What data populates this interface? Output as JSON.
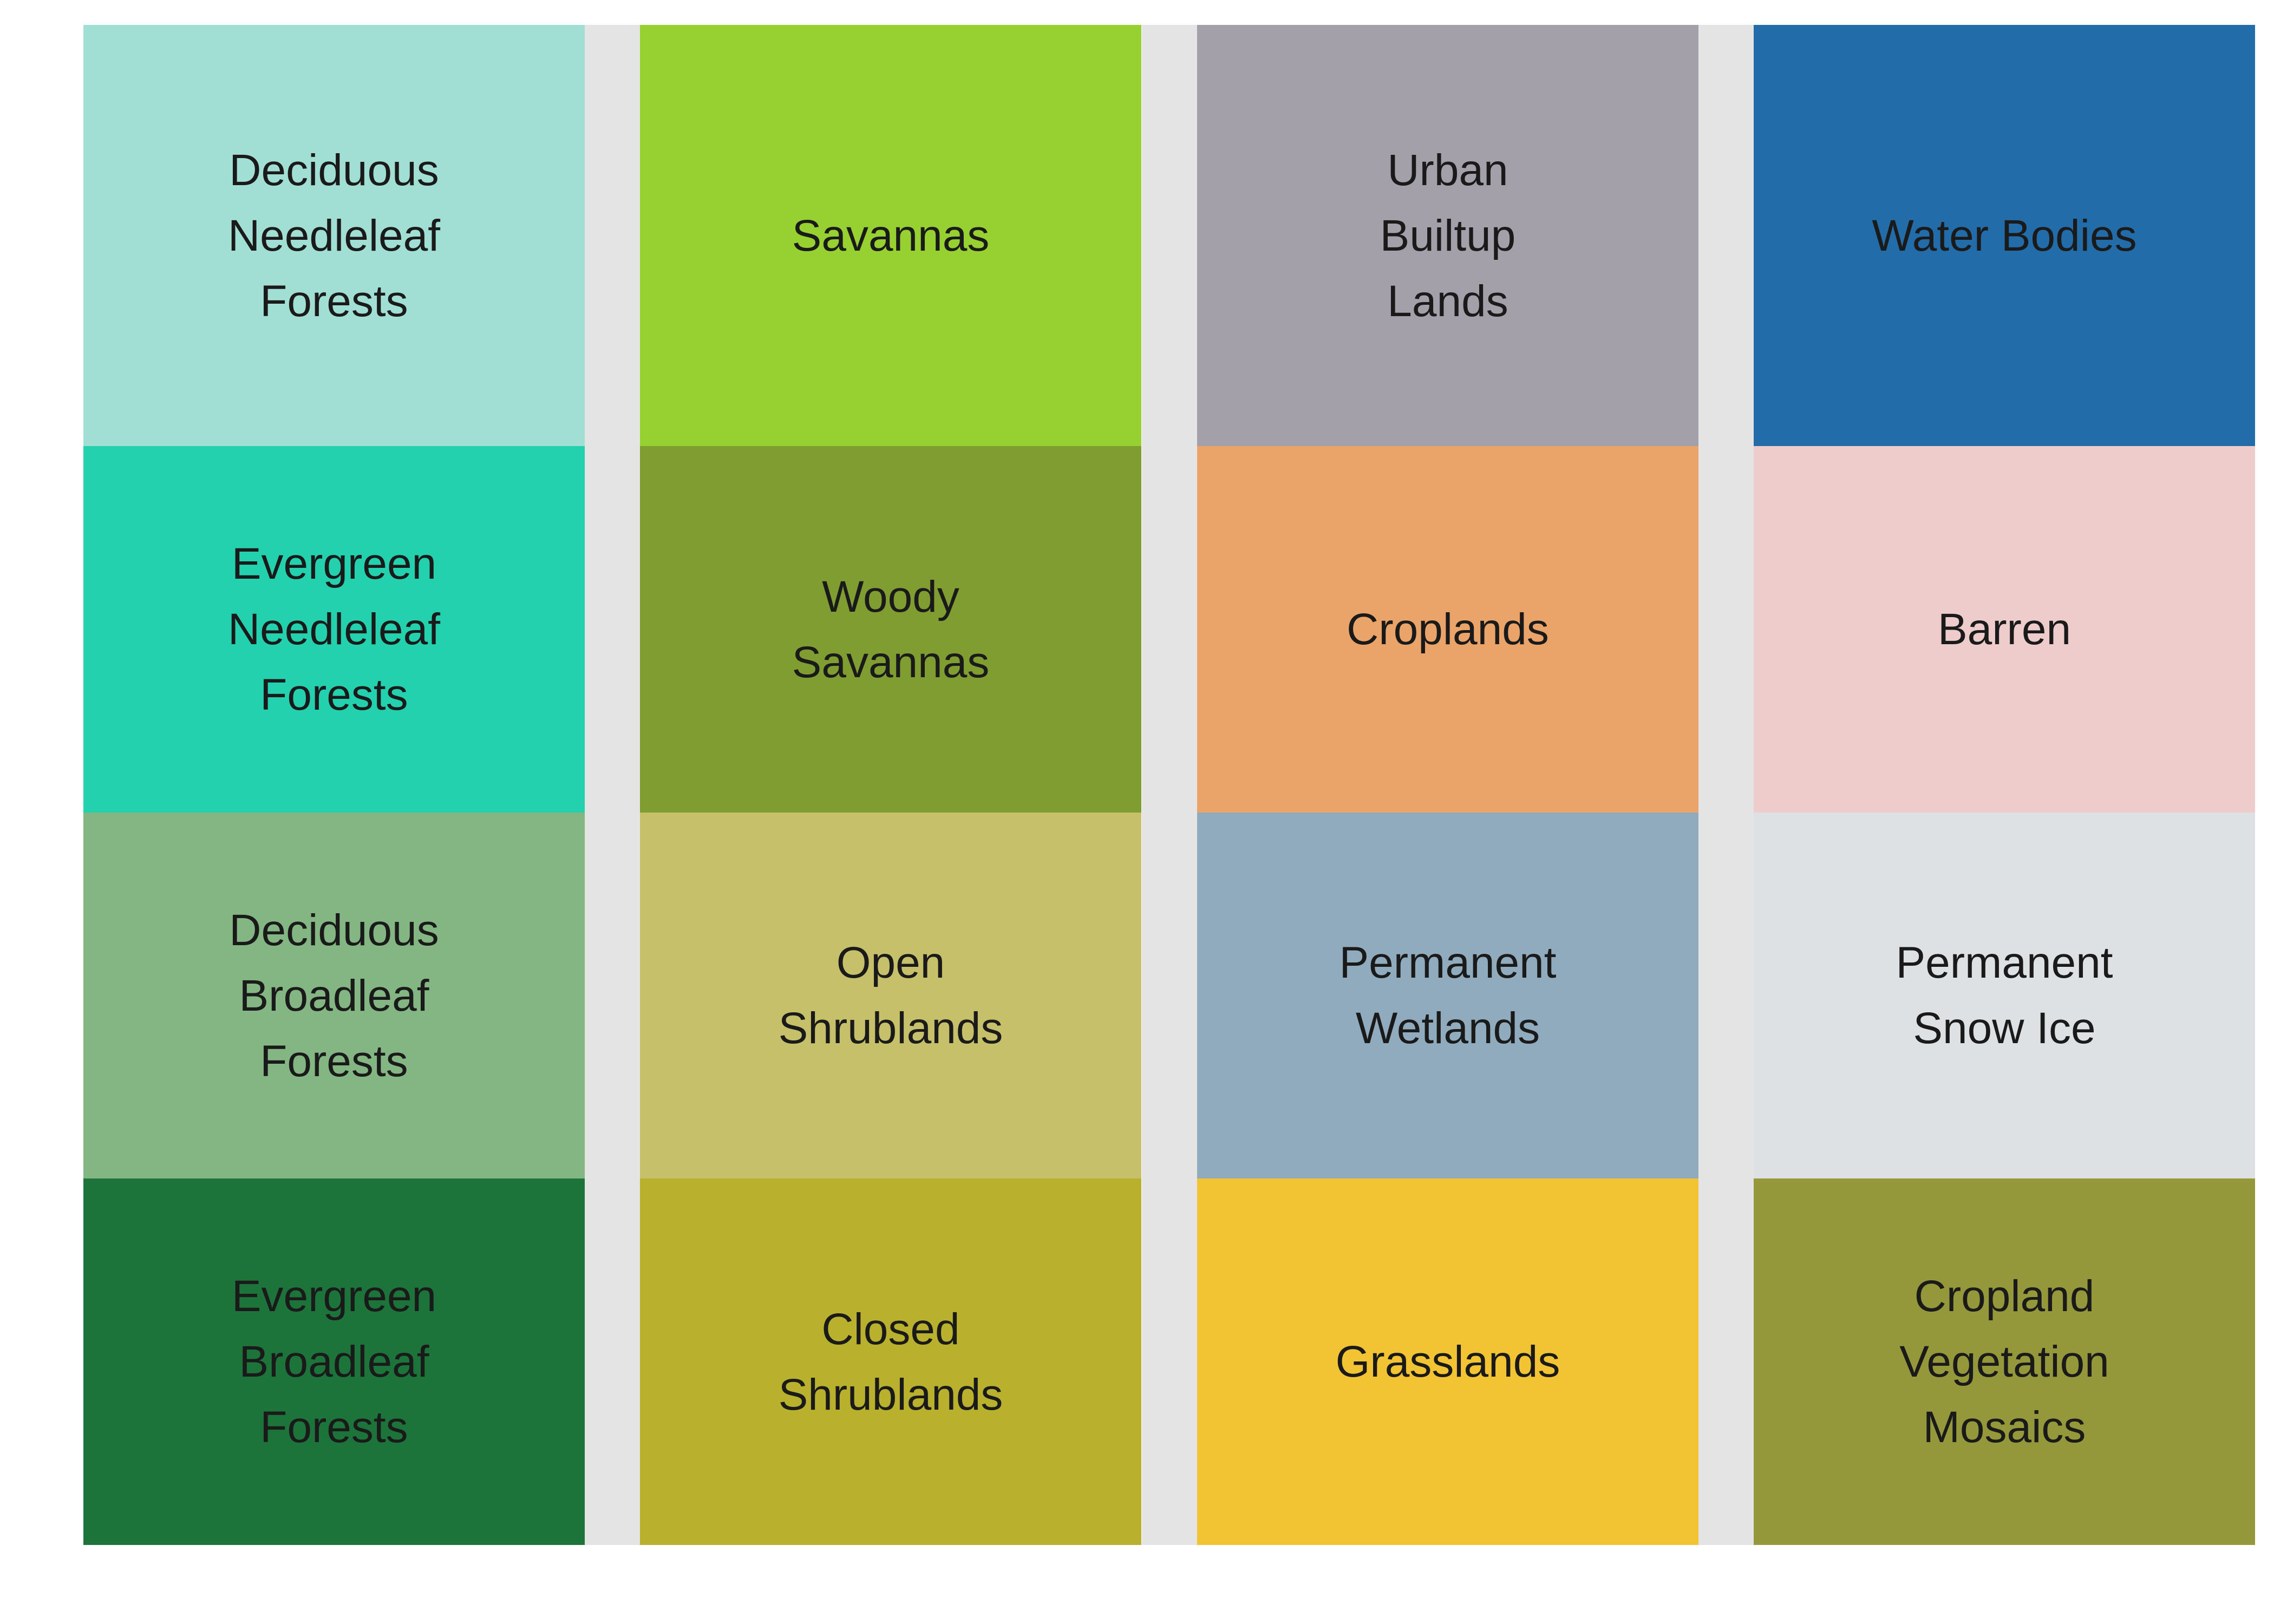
{
  "chart_data": {
    "type": "table",
    "columns": 4,
    "rows": 4,
    "cells": [
      {
        "label": "Deciduous\nNeedleleaf\nForests",
        "color": "#a1dfd4"
      },
      {
        "label": "Savannas",
        "color": "#96d131"
      },
      {
        "label": "Urban\nBuiltup\nLands",
        "color": "#a3a0a9"
      },
      {
        "label": "Water Bodies",
        "color": "#226caa"
      },
      {
        "label": "Evergreen\nNeedleleaf\nForests",
        "color": "#24d1ae"
      },
      {
        "label": "Woody\nSavannas",
        "color": "#809d32"
      },
      {
        "label": "Croplands",
        "color": "#eaa469"
      },
      {
        "label": "Barren",
        "color": "#efcccc"
      },
      {
        "label": "Deciduous\nBroadleaf\nForests",
        "color": "#83b682"
      },
      {
        "label": "Open\nShrublands",
        "color": "#c7c06a"
      },
      {
        "label": "Permanent\nWetlands",
        "color": "#90abbe"
      },
      {
        "label": "Permanent\nSnow Ice",
        "color": "#dee1e3"
      },
      {
        "label": "Evergreen\nBroadleaf\nForests",
        "color": "#1c743a"
      },
      {
        "label": "Closed\nShrublands",
        "color": "#b9b02d"
      },
      {
        "label": "Grasslands",
        "color": "#f2c333"
      },
      {
        "label": "Cropland\nVegetation\nMosaics",
        "color": "#95973b"
      }
    ]
  }
}
